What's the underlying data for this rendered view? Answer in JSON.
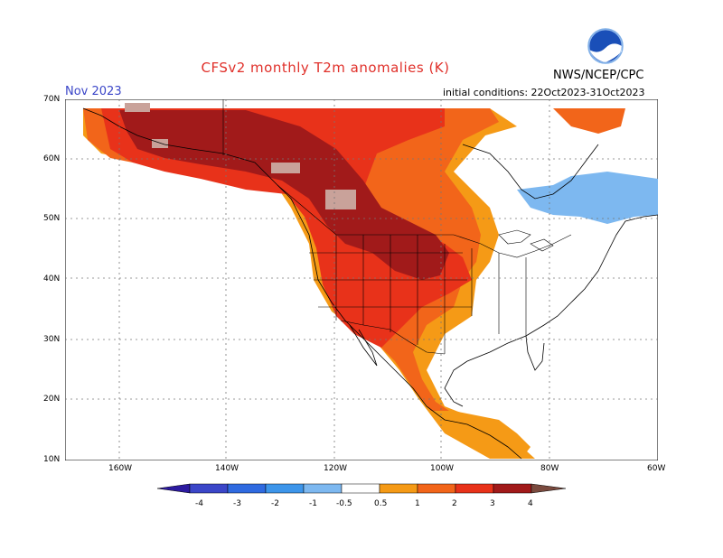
{
  "header": {
    "title": "CFSv2 monthly T2m anomalies (K)",
    "month": "Nov 2023",
    "initial_conditions": "initial conditions: 22Oct2023-31Oct2023",
    "agency": "NWS/NCEP/CPC",
    "logo_text": "NOAA"
  },
  "axes": {
    "lat_labels": [
      "70N",
      "60N",
      "50N",
      "40N",
      "30N",
      "20N",
      "10N"
    ],
    "lon_labels": [
      "160W",
      "140W",
      "120W",
      "100W",
      "80W",
      "60W"
    ]
  },
  "legend": {
    "ticks": [
      "-4",
      "-3",
      "-2",
      "-1",
      "-0.5",
      "0.5",
      "1",
      "2",
      "3",
      "4"
    ],
    "colors": [
      "#2c1aa0",
      "#3b46c8",
      "#2f6ae0",
      "#3d95ea",
      "#7db8f0",
      "#ffffff",
      "#f59a16",
      "#f2651a",
      "#e8321a",
      "#a11a1a",
      "#c9a29a",
      "#7a4a3e"
    ]
  }
}
